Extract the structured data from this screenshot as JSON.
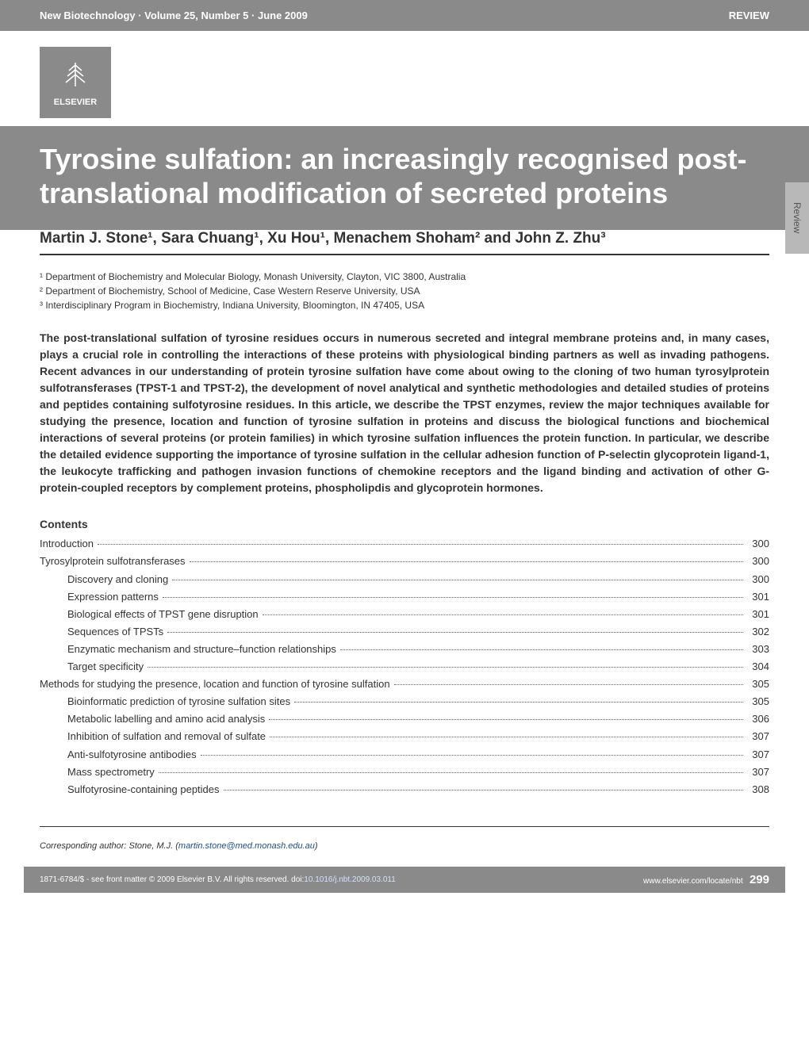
{
  "colors": {
    "header_bg": "#8a8a8a",
    "header_text": "#ffffff",
    "body_bg": "#ffffff",
    "text": "#333333",
    "link": "#1a4f8f",
    "side_tab_bg": "#b8b8b8"
  },
  "header": {
    "journal_info": "New Biotechnology · Volume 25, Number 5 · June 2009",
    "article_type": "REVIEW"
  },
  "logo": {
    "publisher": "ELSEVIER"
  },
  "title": "Tyrosine sulfation: an increasingly recognised post-translational modification of secreted proteins",
  "side_tab": "Review",
  "authors_line": "Martin J. Stone¹, Sara Chuang¹, Xu Hou¹, Menachem Shoham² and John Z. Zhu³",
  "affiliations": [
    "¹ Department of Biochemistry and Molecular Biology, Monash University, Clayton, VIC 3800, Australia",
    "² Department of Biochemistry, School of Medicine, Case Western Reserve University, USA",
    "³ Interdisciplinary Program in Biochemistry, Indiana University, Bloomington, IN 47405, USA"
  ],
  "abstract": "The post-translational sulfation of tyrosine residues occurs in numerous secreted and integral membrane proteins and, in many cases, plays a crucial role in controlling the interactions of these proteins with physiological binding partners as well as invading pathogens. Recent advances in our understanding of protein tyrosine sulfation have come about owing to the cloning of two human tyrosylprotein sulfotransferases (TPST-1 and TPST-2), the development of novel analytical and synthetic methodologies and detailed studies of proteins and peptides containing sulfotyrosine residues. In this article, we describe the TPST enzymes, review the major techniques available for studying the presence, location and function of tyrosine sulfation in proteins and discuss the biological functions and biochemical interactions of several proteins (or protein families) in which tyrosine sulfation influences the protein function. In particular, we describe the detailed evidence supporting the importance of tyrosine sulfation in the cellular adhesion function of P-selectin glycoprotein ligand-1, the leukocyte trafficking and pathogen invasion functions of chemokine receptors and the ligand binding and activation of other G-protein-coupled receptors by complement proteins, phospholipdis and glycoprotein hormones.",
  "contents_header": "Contents",
  "toc": [
    {
      "label": "Introduction",
      "page": "300",
      "indent": 0
    },
    {
      "label": "Tyrosylprotein sulfotransferases",
      "page": "300",
      "indent": 0
    },
    {
      "label": "Discovery and cloning",
      "page": "300",
      "indent": 1
    },
    {
      "label": "Expression patterns",
      "page": "301",
      "indent": 1
    },
    {
      "label": "Biological effects of TPST gene disruption",
      "page": "301",
      "indent": 1
    },
    {
      "label": "Sequences of TPSTs",
      "page": "302",
      "indent": 1
    },
    {
      "label": "Enzymatic mechanism and structure–function relationships",
      "page": "303",
      "indent": 1
    },
    {
      "label": "Target specificity",
      "page": "304",
      "indent": 1
    },
    {
      "label": "Methods for studying the presence, location and function of tyrosine sulfation",
      "page": "305",
      "indent": 0
    },
    {
      "label": "Bioinformatic prediction of tyrosine sulfation sites",
      "page": "305",
      "indent": 1
    },
    {
      "label": "Metabolic labelling and amino acid analysis",
      "page": "306",
      "indent": 1
    },
    {
      "label": "Inhibition of sulfation and removal of sulfate",
      "page": "307",
      "indent": 1
    },
    {
      "label": "Anti-sulfotyrosine antibodies",
      "page": "307",
      "indent": 1
    },
    {
      "label": "Mass spectrometry",
      "page": "307",
      "indent": 1
    },
    {
      "label": "Sulfotyrosine-containing peptides",
      "page": "308",
      "indent": 1
    }
  ],
  "corresponding": {
    "label": "Corresponding author:",
    "name": "Stone, M.J.",
    "email": "martin.stone@med.monash.edu.au"
  },
  "footer": {
    "copyright": "1871-6784/$ - see front matter © 2009 Elsevier B.V. All rights reserved. doi:",
    "doi": "10.1016/j.nbt.2009.03.011",
    "url": "www.elsevier.com/locate/nbt",
    "page_number": "299"
  }
}
